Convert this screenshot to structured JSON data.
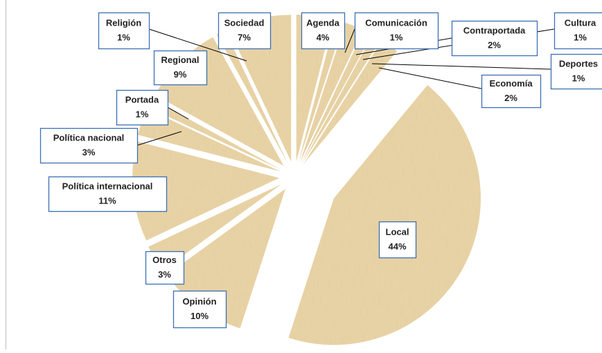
{
  "chart_data": {
    "type": "pie",
    "categories": [
      "Agenda",
      "Comunicación",
      "Contraportada",
      "Cultura",
      "Deportes",
      "Economía",
      "Local",
      "Opinión",
      "Otros",
      "Política internacional",
      "Política nacional",
      "Portada",
      "Regional",
      "Religión",
      "Sociedad"
    ],
    "values": [
      4,
      1,
      2,
      1,
      1,
      2,
      44,
      10,
      3,
      11,
      3,
      1,
      9,
      1,
      7
    ],
    "value_labels": [
      "4%",
      "1%",
      "2%",
      "1%",
      "1%",
      "2%",
      "44%",
      "10%",
      "3%",
      "11%",
      "3%",
      "1%",
      "9%",
      "1%",
      "7%"
    ],
    "color": "#ead5a8"
  }
}
